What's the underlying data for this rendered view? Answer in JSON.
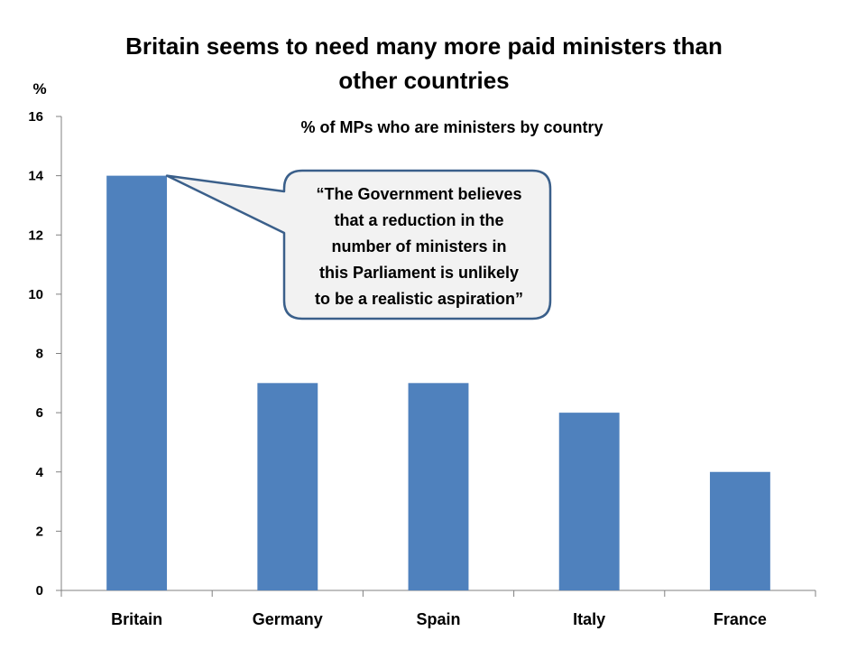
{
  "slide_title_lines": [
    "Britain seems to need many more paid ministers than",
    "other countries"
  ],
  "callout": {
    "lines": [
      "“The Government believes",
      "that a reduction in the",
      "number of ministers in",
      "this Parliament is unlikely",
      "to be a realistic aspiration”"
    ],
    "points_to": "Britain"
  },
  "colors": {
    "bar": "#4F81BD",
    "axis": "#808080",
    "callout_fill": "#F2F2F2",
    "callout_border": "#3A5F8A"
  },
  "chart_data": {
    "type": "bar",
    "title": "% of MPs who are ministers by country",
    "ylabel": "%",
    "xlabel": "",
    "categories": [
      "Britain",
      "Germany",
      "Spain",
      "Italy",
      "France"
    ],
    "values": [
      14,
      7,
      7,
      6,
      4
    ],
    "ylim": [
      0,
      16
    ],
    "yticks": [
      0,
      2,
      4,
      6,
      8,
      10,
      12,
      14,
      16
    ],
    "grid": false,
    "legend": "none"
  }
}
